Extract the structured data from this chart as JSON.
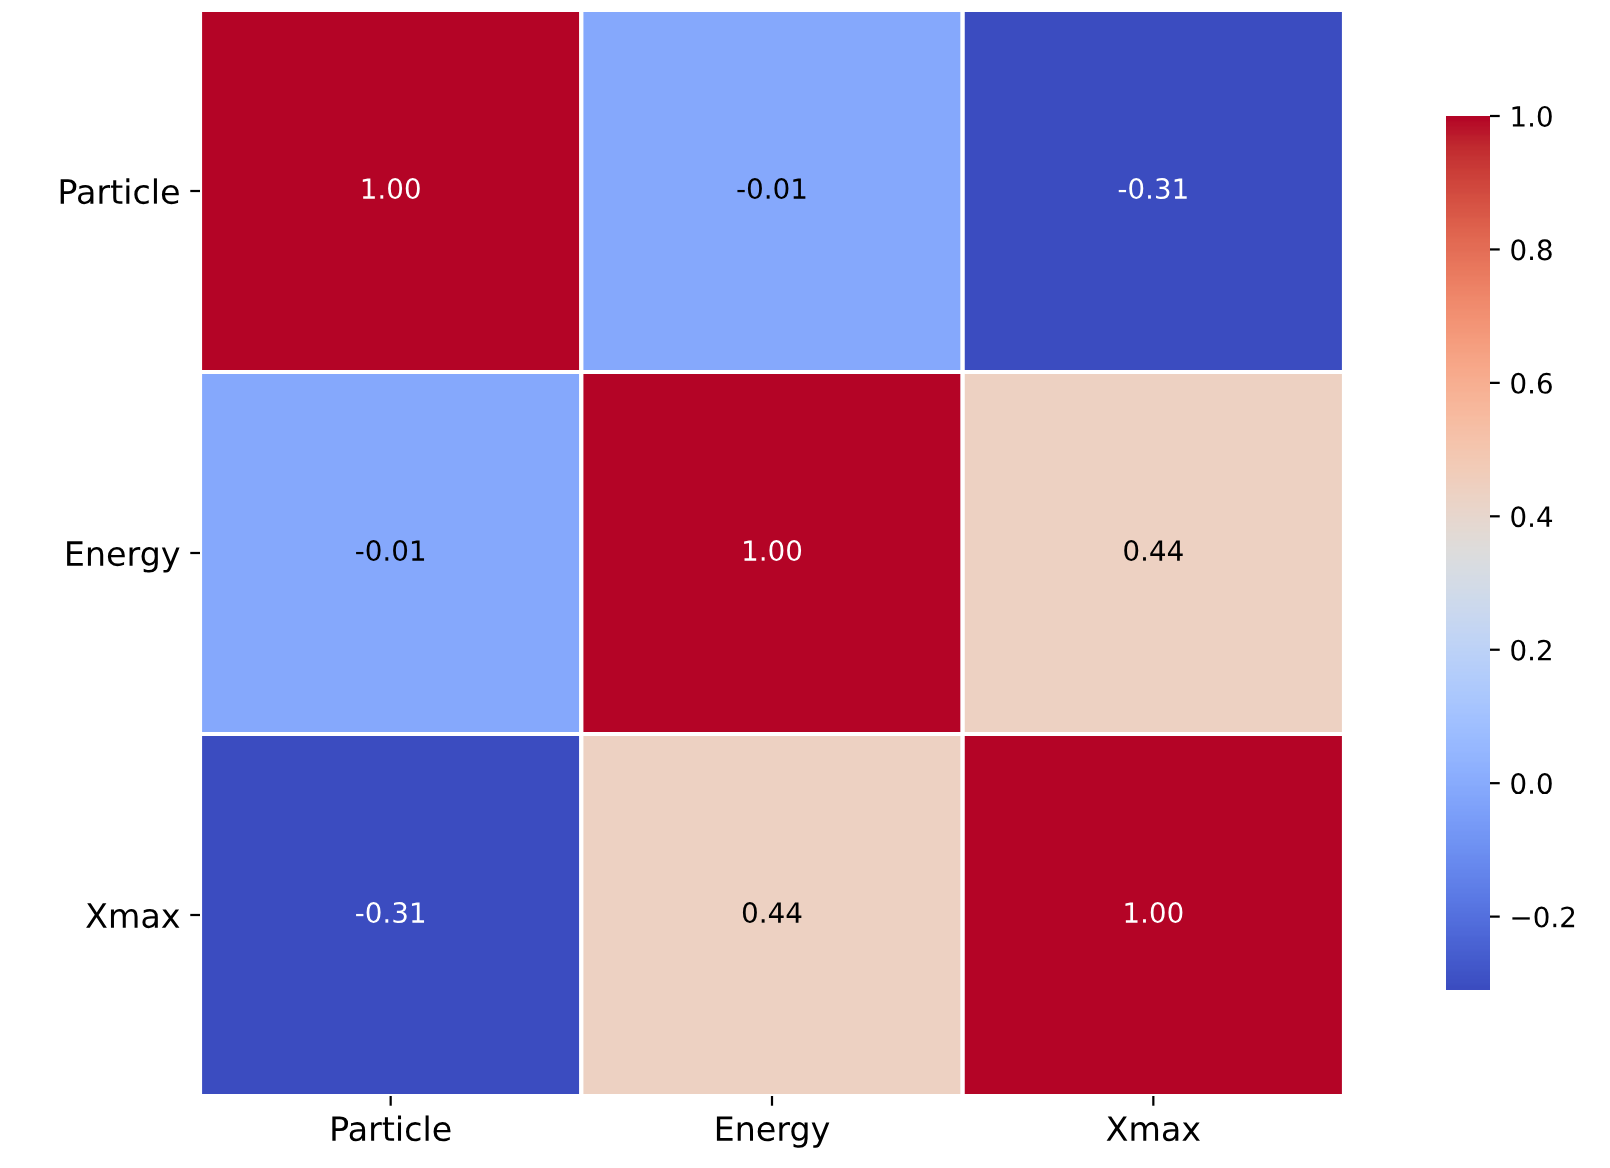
{
  "chart_data": {
    "type": "heatmap",
    "categories": [
      "Particle",
      "Energy",
      "Xmax"
    ],
    "y_categories": [
      "Particle",
      "Energy",
      "Xmax"
    ],
    "cells": [
      [
        1.0,
        -0.01,
        -0.31
      ],
      [
        -0.01,
        1.0,
        0.44
      ],
      [
        -0.31,
        0.44,
        1.0
      ]
    ],
    "cell_labels": [
      [
        "1.00",
        "-0.01",
        "-0.31"
      ],
      [
        "-0.01",
        "1.00",
        "0.44"
      ],
      [
        "-0.31",
        "0.44",
        "1.00"
      ]
    ],
    "clim": [
      -0.31,
      1.0
    ],
    "cticks": [
      {
        "value": -0.2,
        "label": "−0.2"
      },
      {
        "value": 0.0,
        "label": "0.0"
      },
      {
        "value": 0.2,
        "label": "0.2"
      },
      {
        "value": 0.4,
        "label": "0.4"
      },
      {
        "value": 0.6,
        "label": "0.6"
      },
      {
        "value": 0.8,
        "label": "0.8"
      },
      {
        "value": 1.0,
        "label": "1.0"
      }
    ]
  }
}
